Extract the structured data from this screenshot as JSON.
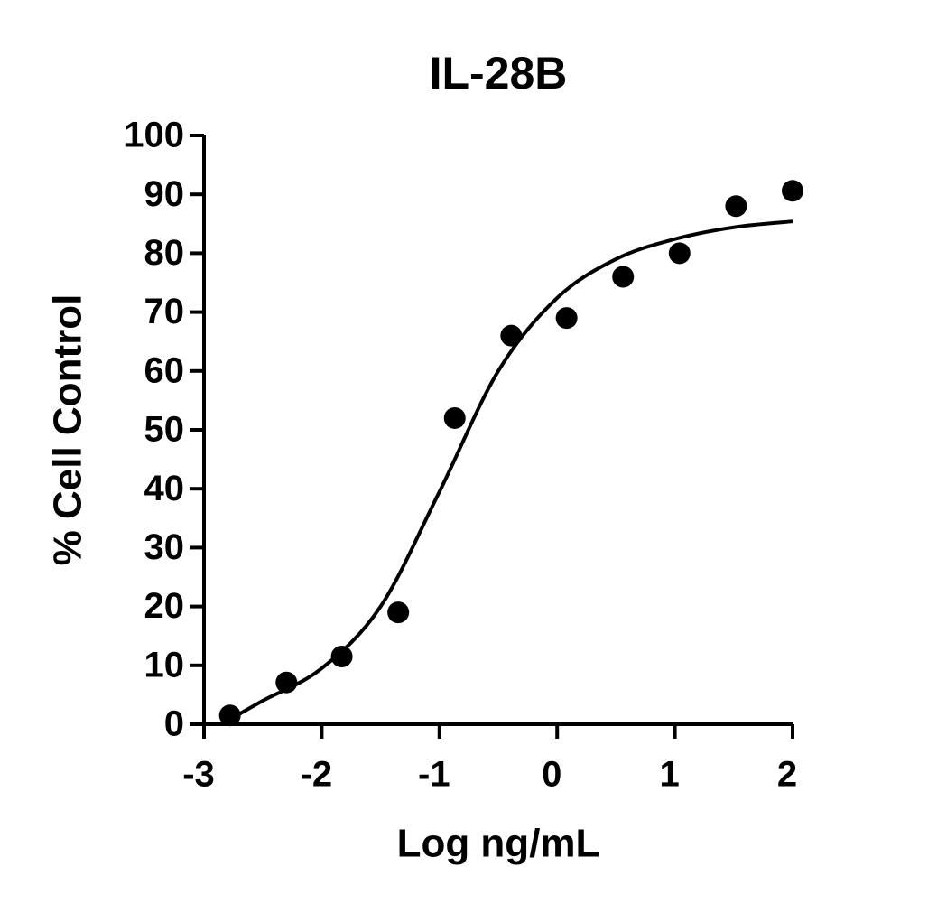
{
  "chart_data": {
    "type": "scatter",
    "title": "IL-28B",
    "x_label": "Log ng/mL",
    "y_label": "% Cell Control",
    "xlim": [
      -3,
      2
    ],
    "ylim": [
      0,
      100
    ],
    "xticks": [
      -3,
      -2,
      -1,
      0,
      1,
      2
    ],
    "yticks": [
      0,
      10,
      20,
      30,
      40,
      50,
      60,
      70,
      80,
      90,
      100
    ],
    "color": "#000000",
    "series": [
      {
        "type": "scatter",
        "x": [
          -2.78,
          -2.3,
          -1.83,
          -1.35,
          -0.87,
          -0.39,
          0.08,
          0.56,
          1.04,
          1.52,
          2.0
        ],
        "values": [
          1.5,
          7.1,
          11.5,
          19,
          52,
          66,
          69,
          76,
          80,
          88,
          90.6
        ]
      },
      {
        "type": "line",
        "x": [
          -2.78,
          -2.5,
          -2,
          -1.5,
          -1,
          -0.5,
          0,
          0.5,
          1,
          1.5,
          2
        ],
        "values": [
          0.8,
          4,
          9.5,
          20,
          39.5,
          60,
          72.4,
          79,
          82.4,
          84.4,
          85.4
        ]
      }
    ]
  }
}
